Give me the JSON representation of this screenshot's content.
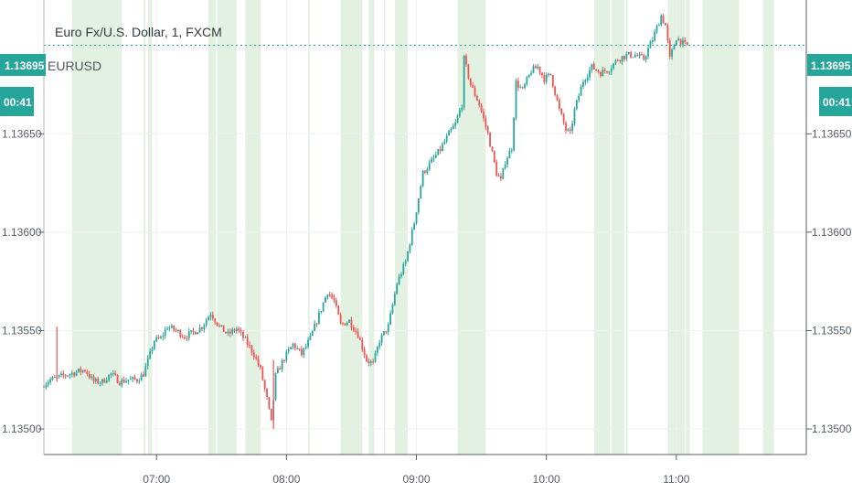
{
  "header": {
    "title": "Euro Fx/U.S. Dollar, 1, FXCM",
    "symbol": "EURUSD"
  },
  "badges": {
    "price": "1.13695",
    "countdown": "00:41"
  },
  "colors": {
    "up": "#26a69a",
    "down": "#ef5350",
    "session_shade": "#e3f1e3",
    "badge": "#26a69a",
    "grid": "#eef0f2",
    "axis": "#555e66"
  },
  "chart_data": {
    "type": "candlestick",
    "instrument": "EURUSD",
    "timeframe": "1",
    "y_ticks": [
      {
        "value": 1.1365,
        "label": "1.13650"
      },
      {
        "value": 1.136,
        "label": "1.13600"
      },
      {
        "value": 1.1355,
        "label": "1.13550"
      },
      {
        "value": 1.135,
        "label": "1.13500"
      }
    ],
    "x_ticks": [
      {
        "value": 420,
        "label": "07:00"
      },
      {
        "value": 480,
        "label": "08:00"
      },
      {
        "value": 540,
        "label": "09:00"
      },
      {
        "value": 600,
        "label": "10:00"
      },
      {
        "value": 660,
        "label": "11:00"
      }
    ],
    "x_range": [
      368,
      720
    ],
    "y_range": [
      1.13487,
      1.13718
    ],
    "last_price": 1.13695,
    "shaded_sessions": [
      [
        381,
        404
      ],
      [
        414,
        414.8
      ],
      [
        416,
        418
      ],
      [
        444,
        447.5
      ],
      [
        448,
        457
      ],
      [
        461,
        468
      ],
      [
        490,
        490.7
      ],
      [
        505,
        515
      ],
      [
        518,
        520.5
      ],
      [
        525,
        525.6
      ],
      [
        530,
        536
      ],
      [
        559,
        572
      ],
      [
        622,
        629.5
      ],
      [
        630,
        636
      ],
      [
        636.7,
        637.6
      ],
      [
        656,
        664
      ],
      [
        664.4,
        666.2
      ],
      [
        672,
        689
      ],
      [
        700,
        705
      ]
    ],
    "path_points": [
      [
        368,
        1.13522
      ],
      [
        372,
        1.13525
      ],
      [
        378,
        1.13527
      ],
      [
        384,
        1.13529
      ],
      [
        388,
        1.1353
      ],
      [
        392,
        1.13524
      ],
      [
        396,
        1.13524
      ],
      [
        400,
        1.13528
      ],
      [
        404,
        1.13524
      ],
      [
        408,
        1.13525
      ],
      [
        412,
        1.13525
      ],
      [
        415,
        1.13528
      ],
      [
        418,
        1.13538
      ],
      [
        420,
        1.13545
      ],
      [
        423,
        1.13546
      ],
      [
        426,
        1.13552
      ],
      [
        430,
        1.1355
      ],
      [
        434,
        1.13547
      ],
      [
        438,
        1.13549
      ],
      [
        442,
        1.13552
      ],
      [
        446,
        1.13559
      ],
      [
        450,
        1.13552
      ],
      [
        454,
        1.13548
      ],
      [
        458,
        1.13551
      ],
      [
        462,
        1.13545
      ],
      [
        466,
        1.13538
      ],
      [
        469,
        1.1353
      ],
      [
        472,
        1.13515
      ],
      [
        474,
        1.13503
      ],
      [
        476,
        1.13527
      ],
      [
        480,
        1.13536
      ],
      [
        484,
        1.13543
      ],
      [
        488,
        1.13538
      ],
      [
        492,
        1.13546
      ],
      [
        496,
        1.13558
      ],
      [
        500,
        1.1357
      ],
      [
        503,
        1.13565
      ],
      [
        506,
        1.13553
      ],
      [
        510,
        1.13555
      ],
      [
        514,
        1.13548
      ],
      [
        518,
        1.13535
      ],
      [
        521,
        1.13533
      ],
      [
        524,
        1.13545
      ],
      [
        528,
        1.13552
      ],
      [
        532,
        1.13574
      ],
      [
        536,
        1.13585
      ],
      [
        540,
        1.13605
      ],
      [
        544,
        1.1363
      ],
      [
        548,
        1.13636
      ],
      [
        552,
        1.13642
      ],
      [
        556,
        1.1365
      ],
      [
        559,
        1.13655
      ],
      [
        562,
        1.13665
      ],
      [
        563,
        1.13688
      ],
      [
        566,
        1.13675
      ],
      [
        570,
        1.13665
      ],
      [
        574,
        1.1365
      ],
      [
        578,
        1.1363
      ],
      [
        580,
        1.13626
      ],
      [
        582,
        1.13636
      ],
      [
        585,
        1.13643
      ],
      [
        587,
        1.13676
      ],
      [
        590,
        1.13672
      ],
      [
        594,
        1.13682
      ],
      [
        597,
        1.13684
      ],
      [
        600,
        1.13678
      ],
      [
        603,
        1.1368
      ],
      [
        607,
        1.13662
      ],
      [
        610,
        1.13652
      ],
      [
        612,
        1.1365
      ],
      [
        614,
        1.13662
      ],
      [
        618,
        1.13677
      ],
      [
        622,
        1.13684
      ],
      [
        626,
        1.13681
      ],
      [
        630,
        1.13683
      ],
      [
        634,
        1.13688
      ],
      [
        638,
        1.1369
      ],
      [
        642,
        1.1369
      ],
      [
        646,
        1.13688
      ],
      [
        650,
        1.13698
      ],
      [
        654,
        1.1371
      ],
      [
        656,
        1.13705
      ],
      [
        658,
        1.13688
      ],
      [
        661,
        1.13699
      ],
      [
        665,
        1.13695
      ]
    ],
    "x_unit": "minutes since 00:00 (1-minute candles)"
  }
}
